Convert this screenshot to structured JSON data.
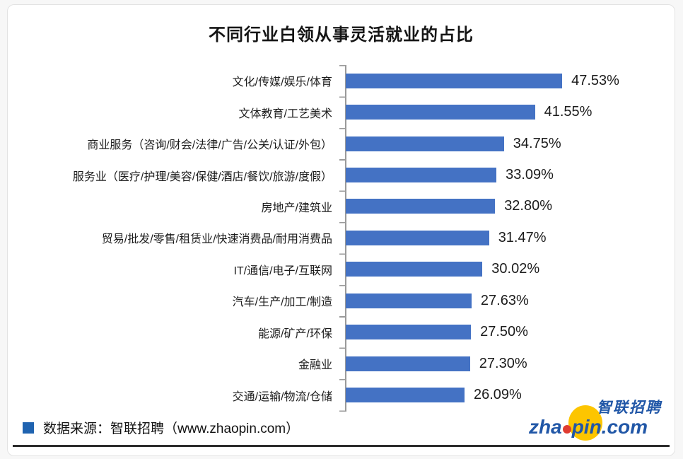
{
  "chart_data": {
    "type": "bar",
    "orientation": "horizontal",
    "title": "不同行业白领从事灵活就业的占比",
    "categories": [
      "文化/传媒/娱乐/体育",
      "文体教育/工艺美术",
      "商业服务（咨询/财会/法律/广告/公关/认证/外包）",
      "服务业（医疗/护理/美容/保健/酒店/餐饮/旅游/度假）",
      "房地产/建筑业",
      "贸易/批发/零售/租赁业/快速消费品/耐用消费品",
      "IT/通信/电子/互联网",
      "汽车/生产/加工/制造",
      "能源/矿产/环保",
      "金融业",
      "交通/运输/物流/仓储"
    ],
    "values": [
      47.53,
      41.55,
      34.75,
      33.09,
      32.8,
      31.47,
      30.02,
      27.63,
      27.5,
      27.3,
      26.09
    ],
    "value_labels": [
      "47.53%",
      "41.55%",
      "34.75%",
      "33.09%",
      "32.80%",
      "31.47%",
      "30.02%",
      "27.63%",
      "27.50%",
      "27.30%",
      "26.09%"
    ],
    "xlabel": "",
    "ylabel": "",
    "xlim": [
      0,
      50
    ],
    "grid": false,
    "legend": false,
    "bar_color": "#4472C4"
  },
  "footer": {
    "source_label": "数据来源：智联招聘（www.zhaopin.com）",
    "bullet_color": "#1f63b0"
  },
  "logo": {
    "cn": "智联招聘",
    "en_prefix": "zha",
    "en_suffix": "pin.com",
    "blue": "#2157a7",
    "yellow": "#fdc500",
    "red": "#e03c31"
  }
}
